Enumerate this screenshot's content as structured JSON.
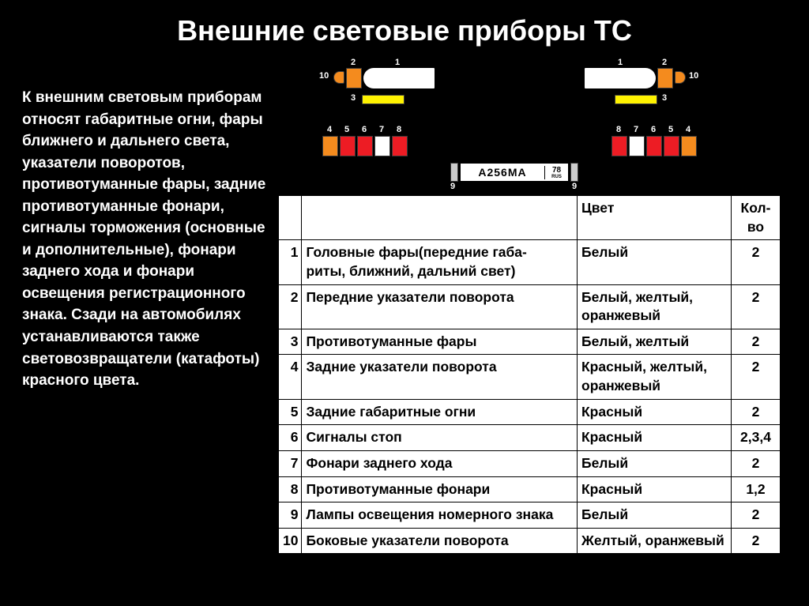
{
  "title": "Внешние световые приборы ТС",
  "body": "К внешним световым приборам относят габаритные огни, фары ближнего и дальнего света, указатели поворотов, противотуманные фары, задние противотуманные фонари, сигналы торможения (основные и дополнительные), фонари заднего хода и фонари освещения регистрационного знака. Сзади на автомобилях устанавливаются также световозвращатели (катафоты) красного цвета.",
  "plate": {
    "number": "А256МА",
    "region": "78",
    "rus": "RUS"
  },
  "colors": {
    "orange": "#f48b1e",
    "yellow": "#fef200",
    "red": "#ed1c24",
    "white": "#ffffff",
    "ltgray": "#cccccc"
  },
  "front_labels": {
    "l10": "10",
    "l2": "2",
    "l1": "1",
    "l3": "3"
  },
  "rear_labels": {
    "l4": "4",
    "l5": "5",
    "l6": "6",
    "l7": "7",
    "l8": "8",
    "l9": "9"
  },
  "table": {
    "headers": {
      "name": "",
      "color": "Цвет",
      "qty": "Кол-во"
    },
    "rows": [
      {
        "n": "1",
        "name": "Головные фары(передние габа-\nриты, ближний, дальний свет)",
        "color": "Белый",
        "qty": "2"
      },
      {
        "n": "2",
        "name": "Передние указатели поворота",
        "color": "Белый, желтый, оранжевый",
        "qty": "2"
      },
      {
        "n": "3",
        "name": "Противотуманные фары",
        "color": "Белый, желтый",
        "qty": "2"
      },
      {
        "n": "4",
        "name": "Задние указатели поворота",
        "color": "Красный, желтый, оранжевый",
        "qty": "2"
      },
      {
        "n": "5",
        "name": "Задние габаритные огни",
        "color": "Красный",
        "qty": "2"
      },
      {
        "n": "6",
        "name": "Сигналы стоп",
        "color": "Красный",
        "qty": "2,3,4"
      },
      {
        "n": "7",
        "name": "Фонари заднего хода",
        "color": "Белый",
        "qty": "2"
      },
      {
        "n": "8",
        "name": "Противотуманные фонари",
        "color": "Красный",
        "qty": "1,2"
      },
      {
        "n": "9",
        "name": "Лампы освещения номерного знака",
        "color": "Белый",
        "qty": "2"
      },
      {
        "n": "10",
        "name": "Боковые указатели поворота",
        "color": "Желтый, оранжевый",
        "qty": "2"
      }
    ]
  }
}
